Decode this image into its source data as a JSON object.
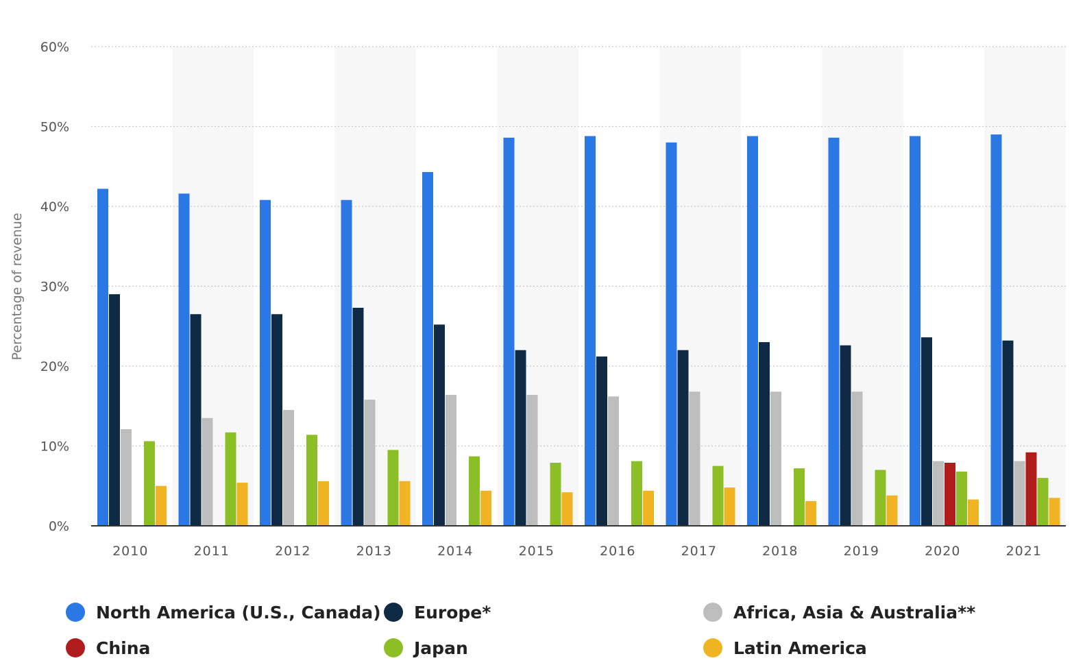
{
  "chart_data": {
    "type": "bar",
    "title": "",
    "xlabel": "",
    "ylabel": "Percentage of revenue",
    "ylim": [
      0,
      60
    ],
    "yticks": [
      "0%",
      "10%",
      "20%",
      "30%",
      "40%",
      "50%",
      "60%"
    ],
    "grid": true,
    "legend_position": "bottom",
    "categories": [
      "2010",
      "2011",
      "2012",
      "2013",
      "2014",
      "2015",
      "2016",
      "2017",
      "2018",
      "2019",
      "2020",
      "2021"
    ],
    "series": [
      {
        "name": "North America (U.S., Canada)",
        "color": "#2b78e4",
        "values": [
          42.2,
          41.6,
          40.8,
          40.8,
          44.3,
          48.6,
          48.8,
          48.0,
          48.8,
          48.6,
          48.8,
          49.0
        ]
      },
      {
        "name": "Europe*",
        "color": "#0f2a44",
        "values": [
          29.0,
          26.5,
          26.5,
          27.3,
          25.2,
          22.0,
          21.2,
          22.0,
          23.0,
          22.6,
          23.6,
          23.2
        ]
      },
      {
        "name": "Africa, Asia & Australia**",
        "color": "#bdbdbd",
        "values": [
          12.1,
          13.5,
          14.5,
          15.8,
          16.4,
          16.4,
          16.2,
          16.8,
          16.8,
          16.8,
          8.1,
          8.1
        ]
      },
      {
        "name": "China",
        "color": "#b01c1c",
        "values": [
          null,
          null,
          null,
          null,
          null,
          null,
          null,
          null,
          null,
          null,
          7.9,
          9.2
        ]
      },
      {
        "name": "Japan",
        "color": "#8cbf26",
        "values": [
          10.6,
          11.7,
          11.4,
          9.5,
          8.7,
          7.9,
          8.1,
          7.5,
          7.2,
          7.0,
          6.8,
          6.0
        ]
      },
      {
        "name": "Latin America",
        "color": "#f0b323",
        "values": [
          5.0,
          5.4,
          5.6,
          5.6,
          4.4,
          4.2,
          4.4,
          4.8,
          3.1,
          3.8,
          3.3,
          3.5
        ]
      }
    ]
  }
}
